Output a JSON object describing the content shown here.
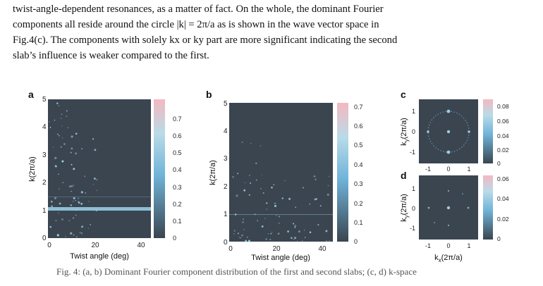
{
  "paragraph": {
    "line1": "twist-angle-dependent resonances, as a matter of fact.  On the whole, the dominant Fourier",
    "line2": "components all reside around the circle |k| = 2π/a as is shown in the wave vector space in",
    "line3": "Fig.4(c). The components with solely kx or ky part are more significant indicating the second",
    "line4": "slab’s influence is weaker compared to the first."
  },
  "figure": {
    "colors": {
      "background": "#3a4550",
      "feature": "#9fd4ec",
      "colorbar_low": "#3a4550",
      "colorbar_mid": "#6fb3d8",
      "colorbar_high": "#f4b8c0"
    },
    "panel_a": {
      "label": "a",
      "xlabel": "Twist angle (deg)",
      "ylabel": "k(2π/a)",
      "xticks": [
        "0",
        "20",
        "40"
      ],
      "yticks": [
        "0",
        "1",
        "2",
        "3",
        "4",
        "5"
      ],
      "colorbar_ticks": [
        "0",
        "0.1",
        "0.2",
        "0.3",
        "0.4",
        "0.5",
        "0.6",
        "0.7"
      ]
    },
    "panel_b": {
      "label": "b",
      "xlabel": "Twist angle (deg)",
      "ylabel": "k(2π/a)",
      "xticks": [
        "0",
        "20",
        "40"
      ],
      "yticks": [
        "0",
        "1",
        "2",
        "3",
        "4",
        "5"
      ],
      "colorbar_ticks": [
        "0",
        "0.1",
        "0.2",
        "0.3",
        "0.4",
        "0.5",
        "0.6",
        "0.7"
      ]
    },
    "panel_c": {
      "label": "c",
      "ylabel_main": "k",
      "ylabel_sub": "y",
      "ylabel_unit": "(2π/a)",
      "xticks": [
        "-1",
        "0",
        "1"
      ],
      "yticks": [
        "1",
        "0",
        "-1"
      ],
      "colorbar_ticks": [
        "0",
        "0.02",
        "0.04",
        "0.06",
        "0.08"
      ]
    },
    "panel_d": {
      "label": "d",
      "xlabel_main": "k",
      "xlabel_sub": "x",
      "xlabel_unit": "(2π/a)",
      "ylabel_main": "k",
      "ylabel_sub": "y",
      "ylabel_unit": "(2π/a)",
      "xticks": [
        "-1",
        "0",
        "1"
      ],
      "yticks": [
        "1",
        "0",
        "-1"
      ],
      "colorbar_ticks": [
        "0",
        "0.02",
        "0.04",
        "0.06"
      ]
    }
  },
  "caption": "Fig. 4: (a, b) Dominant Fourier component distribution of the first and second slabs; (c, d) k-space"
}
